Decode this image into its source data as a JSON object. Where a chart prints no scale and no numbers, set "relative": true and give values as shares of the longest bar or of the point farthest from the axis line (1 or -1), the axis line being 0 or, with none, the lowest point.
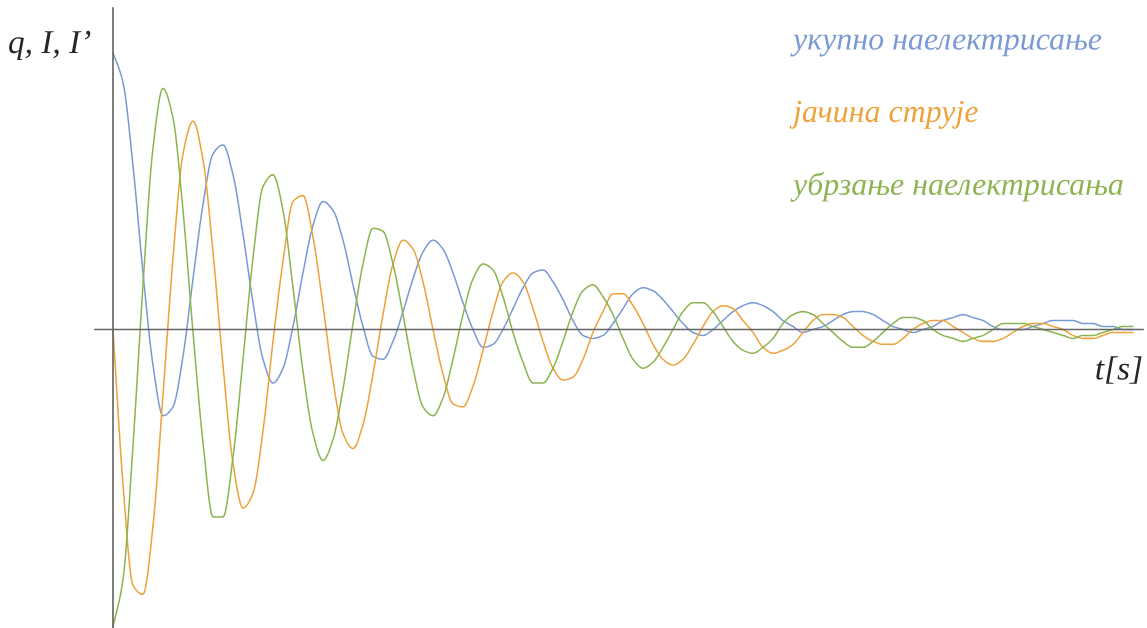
{
  "chart_data": {
    "type": "line",
    "relative": true,
    "xlabel": "t[s]",
    "ylabel": "q, I, I’",
    "legend": "top right",
    "categories": [
      null,
      null,
      null,
      null,
      null,
      null,
      null,
      null,
      null,
      null,
      null,
      null,
      null,
      null,
      null,
      null,
      null,
      null,
      null,
      null,
      null,
      null,
      null,
      null,
      null,
      null,
      null,
      null,
      null,
      null,
      null,
      null,
      null,
      null,
      null,
      null,
      null,
      null,
      null,
      null,
      null,
      null,
      null,
      null,
      null,
      null,
      null,
      null,
      null,
      null,
      null,
      null,
      null,
      null,
      null,
      null,
      null,
      null,
      null,
      null,
      null,
      null,
      null,
      null,
      null,
      null,
      null,
      null,
      null,
      null,
      null,
      null,
      null,
      null,
      null,
      null,
      null,
      null,
      null,
      null,
      null,
      null,
      null,
      null,
      null,
      null,
      null,
      null,
      null,
      null,
      null,
      null,
      null,
      null,
      null,
      null,
      null,
      null,
      null,
      null,
      null,
      null,
      null
    ],
    "series": [
      {
        "name": "укупно наелектрисање",
        "color": "#7a9ad4",
        "values": [
          0.93,
          0.83,
          0.55,
          0.19,
          -0.12,
          -0.29,
          -0.26,
          -0.09,
          0.17,
          0.42,
          0.59,
          0.62,
          0.52,
          0.32,
          0.09,
          -0.1,
          -0.18,
          -0.13,
          0.01,
          0.19,
          0.35,
          0.43,
          0.4,
          0.3,
          0.15,
          0.01,
          -0.09,
          -0.1,
          -0.04,
          0.06,
          0.17,
          0.26,
          0.3,
          0.27,
          0.19,
          0.09,
          0.0,
          -0.06,
          -0.05,
          0.0,
          0.07,
          0.14,
          0.19,
          0.2,
          0.16,
          0.1,
          0.03,
          -0.02,
          -0.03,
          -0.02,
          0.02,
          0.07,
          0.12,
          0.14,
          0.13,
          0.1,
          0.06,
          0.02,
          -0.01,
          -0.02,
          0.0,
          0.03,
          0.06,
          0.08,
          0.09,
          0.08,
          0.06,
          0.03,
          0.01,
          -0.01,
          0.0,
          0.01,
          0.03,
          0.05,
          0.06,
          0.06,
          0.05,
          0.03,
          0.01,
          0.0,
          -0.01,
          0.0,
          0.01,
          0.03,
          0.04,
          0.05,
          0.04,
          0.03,
          0.01,
          0.0,
          0.0,
          0.0,
          0.01,
          0.02,
          0.03,
          0.03,
          0.03,
          0.02,
          0.02,
          0.01,
          0.01,
          0.0,
          0.0
        ]
      },
      {
        "name": "јачина струје",
        "color": "#eea23c",
        "values": [
          0,
          -0.52,
          -0.86,
          -0.89,
          -0.66,
          -0.22,
          0.24,
          0.59,
          0.7,
          0.57,
          0.26,
          -0.12,
          -0.45,
          -0.6,
          -0.55,
          -0.34,
          -0.04,
          0.23,
          0.43,
          0.45,
          0.31,
          0.08,
          -0.17,
          -0.35,
          -0.4,
          -0.32,
          -0.15,
          0.05,
          0.22,
          0.3,
          0.27,
          0.16,
          0,
          -0.15,
          -0.25,
          -0.26,
          -0.19,
          -0.07,
          0.06,
          0.16,
          0.19,
          0.16,
          0.07,
          -0.04,
          -0.13,
          -0.17,
          -0.16,
          -0.1,
          -0.01,
          0.06,
          0.12,
          0.12,
          0.08,
          0.02,
          -0.05,
          -0.1,
          -0.12,
          -0.1,
          -0.05,
          0.01,
          0.06,
          0.08,
          0.07,
          0.03,
          -0.01,
          -0.06,
          -0.08,
          -0.07,
          -0.05,
          -0.01,
          0.03,
          0.05,
          0.05,
          0.04,
          0.01,
          -0.02,
          -0.04,
          -0.05,
          -0.05,
          -0.03,
          0,
          0.02,
          0.03,
          0.03,
          0.01,
          -0.01,
          -0.03,
          -0.04,
          -0.04,
          -0.03,
          -0.01,
          0.01,
          0.02,
          0.02,
          0.01,
          0,
          -0.02,
          -0.03,
          -0.03,
          -0.02,
          -0.01,
          -0.01,
          -0.01
        ]
      },
      {
        "name": "убрзање наелектрисања",
        "color": "#8cb450",
        "values": [
          -1,
          -0.84,
          -0.39,
          0.15,
          0.61,
          0.81,
          0.71,
          0.4,
          -0.01,
          -0.38,
          -0.63,
          -0.63,
          -0.43,
          -0.1,
          0.24,
          0.48,
          0.52,
          0.4,
          0.14,
          -0.14,
          -0.35,
          -0.44,
          -0.37,
          -0.2,
          0.02,
          0.22,
          0.34,
          0.33,
          0.22,
          0.05,
          -0.13,
          -0.26,
          -0.29,
          -0.23,
          -0.1,
          0.05,
          0.17,
          0.22,
          0.2,
          0.11,
          -0.01,
          -0.11,
          -0.18,
          -0.18,
          -0.13,
          -0.04,
          0.06,
          0.13,
          0.15,
          0.11,
          0.05,
          -0.03,
          -0.1,
          -0.13,
          -0.11,
          -0.06,
          0,
          0.06,
          0.09,
          0.09,
          0.06,
          0.01,
          -0.04,
          -0.07,
          -0.08,
          -0.06,
          -0.03,
          0.02,
          0.05,
          0.06,
          0.05,
          0.02,
          -0.01,
          -0.04,
          -0.06,
          -0.06,
          -0.04,
          -0.01,
          0.02,
          0.04,
          0.04,
          0.03,
          0,
          -0.02,
          -0.03,
          -0.04,
          -0.03,
          -0.02,
          0,
          0.02,
          0.02,
          0.02,
          0.01,
          0,
          -0.01,
          -0.02,
          -0.03,
          -0.02,
          -0.02,
          -0.01,
          0,
          0.01,
          0.01
        ]
      }
    ]
  }
}
